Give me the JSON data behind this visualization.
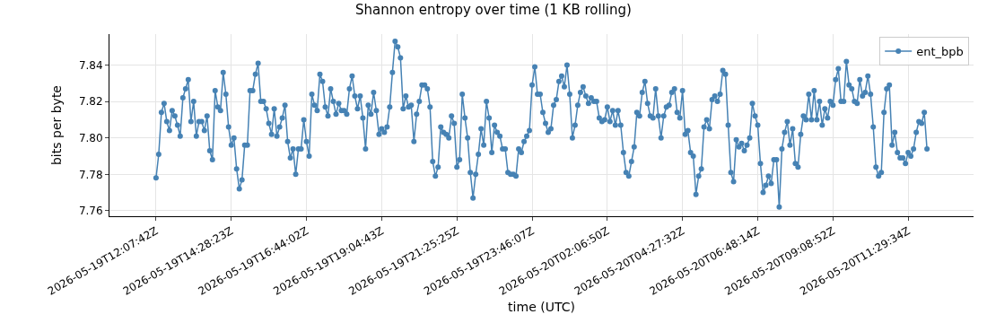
{
  "chart_data": {
    "type": "line",
    "title": "Shannon entropy over time (1 KB rolling)",
    "xlabel": "time (UTC)",
    "ylabel": "bits per byte",
    "categories": [
      "2026-05-19T12:07:42Z",
      null,
      null,
      null,
      null,
      null,
      null,
      null,
      null,
      null,
      null,
      null,
      null,
      null,
      null,
      null,
      null,
      null,
      null,
      null,
      null,
      null,
      null,
      null,
      null,
      null,
      null,
      null,
      "2026-05-19T14:28:23Z",
      null,
      null,
      null,
      null,
      null,
      null,
      null,
      null,
      null,
      null,
      null,
      null,
      null,
      null,
      null,
      null,
      null,
      null,
      null,
      null,
      null,
      null,
      null,
      null,
      null,
      null,
      null,
      "2026-05-19T16:44:02Z",
      null,
      null,
      null,
      null,
      null,
      null,
      null,
      null,
      null,
      null,
      null,
      null,
      null,
      null,
      null,
      null,
      null,
      null,
      null,
      null,
      null,
      null,
      null,
      null,
      null,
      null,
      null,
      "2026-05-19T19:04:43Z",
      null,
      null,
      null,
      null,
      null,
      null,
      null,
      null,
      null,
      null,
      null,
      null,
      null,
      null,
      null,
      null,
      null,
      null,
      null,
      null,
      null,
      null,
      null,
      null,
      null,
      null,
      null,
      "2026-05-19T21:25:25Z",
      null,
      null,
      null,
      null,
      null,
      null,
      null,
      null,
      null,
      null,
      null,
      null,
      null,
      null,
      null,
      null,
      null,
      null,
      null,
      null,
      null,
      null,
      null,
      null,
      null,
      null,
      null,
      "2026-05-19T23:46:07Z",
      null,
      null,
      null,
      null,
      null,
      null,
      null,
      null,
      null,
      null,
      null,
      null,
      null,
      null,
      null,
      null,
      null,
      null,
      null,
      null,
      null,
      null,
      null,
      null,
      null,
      null,
      null,
      "2026-05-20T02:06:50Z",
      null,
      null,
      null,
      null,
      null,
      null,
      null,
      null,
      null,
      null,
      null,
      null,
      null,
      null,
      null,
      null,
      null,
      null,
      null,
      null,
      null,
      null,
      null,
      null,
      null,
      null,
      null,
      "2026-05-20T04:27:32Z",
      null,
      null,
      null,
      null,
      null,
      null,
      null,
      null,
      null,
      null,
      null,
      null,
      null,
      null,
      null,
      null,
      null,
      null,
      null,
      null,
      null,
      null,
      null,
      null,
      null,
      null,
      null,
      "2026-05-20T06:48:14Z",
      null,
      null,
      null,
      null,
      null,
      null,
      null,
      null,
      null,
      null,
      null,
      null,
      null,
      null,
      null,
      null,
      null,
      null,
      null,
      null,
      null,
      null,
      null,
      null,
      null,
      null,
      null,
      "2026-05-20T09:08:52Z",
      null,
      null,
      null,
      null,
      null,
      null,
      null,
      null,
      null,
      null,
      null,
      null,
      null,
      null,
      null,
      null,
      null,
      null,
      null,
      null,
      null,
      null,
      null,
      null,
      null,
      null,
      null,
      "2026-05-20T11:29:34Z",
      null,
      null,
      null,
      null,
      null,
      null,
      null
    ],
    "series": [
      {
        "name": "ent_bpb",
        "color": "#4682b4",
        "values": [
          7.778,
          7.791,
          7.814,
          7.819,
          7.809,
          7.804,
          7.815,
          7.812,
          7.807,
          7.801,
          7.822,
          7.827,
          7.832,
          7.809,
          7.82,
          7.801,
          7.809,
          7.809,
          7.804,
          7.812,
          7.793,
          7.788,
          7.826,
          7.817,
          7.815,
          7.836,
          7.824,
          7.806,
          7.796,
          7.8,
          7.783,
          7.772,
          7.777,
          7.796,
          7.796,
          7.826,
          7.826,
          7.835,
          7.841,
          7.82,
          7.82,
          7.816,
          7.808,
          7.802,
          7.816,
          7.801,
          7.806,
          7.811,
          7.818,
          7.798,
          7.789,
          7.794,
          7.78,
          7.794,
          7.794,
          7.81,
          7.798,
          7.79,
          7.824,
          7.818,
          7.815,
          7.835,
          7.831,
          7.817,
          7.812,
          7.827,
          7.82,
          7.813,
          7.819,
          7.815,
          7.815,
          7.813,
          7.827,
          7.834,
          7.823,
          7.816,
          7.823,
          7.811,
          7.794,
          7.818,
          7.813,
          7.825,
          7.815,
          7.802,
          7.805,
          7.803,
          7.806,
          7.817,
          7.836,
          7.853,
          7.85,
          7.844,
          7.816,
          7.823,
          7.817,
          7.818,
          7.798,
          7.813,
          7.82,
          7.829,
          7.829,
          7.827,
          7.817,
          7.787,
          7.779,
          7.784,
          7.806,
          7.803,
          7.802,
          7.8,
          7.812,
          7.808,
          7.784,
          7.788,
          7.824,
          7.811,
          7.8,
          7.781,
          7.767,
          7.78,
          7.791,
          7.805,
          7.796,
          7.82,
          7.811,
          7.792,
          7.807,
          7.803,
          7.801,
          7.794,
          7.794,
          7.781,
          7.78,
          7.78,
          7.779,
          7.794,
          7.792,
          7.798,
          7.801,
          7.804,
          7.829,
          7.839,
          7.824,
          7.824,
          7.814,
          7.808,
          7.803,
          7.805,
          7.818,
          7.821,
          7.831,
          7.834,
          7.828,
          7.84,
          7.824,
          7.8,
          7.807,
          7.818,
          7.825,
          7.828,
          7.823,
          7.819,
          7.822,
          7.82,
          7.82,
          7.811,
          7.809,
          7.81,
          7.817,
          7.809,
          7.815,
          7.807,
          7.815,
          7.807,
          7.792,
          7.781,
          7.779,
          7.787,
          7.795,
          7.814,
          7.812,
          7.825,
          7.831,
          7.819,
          7.812,
          7.811,
          7.827,
          7.812,
          7.8,
          7.812,
          7.817,
          7.818,
          7.825,
          7.827,
          7.814,
          7.811,
          7.826,
          7.802,
          7.804,
          7.792,
          7.79,
          7.769,
          7.779,
          7.783,
          7.806,
          7.81,
          7.805,
          7.821,
          7.823,
          7.82,
          7.824,
          7.837,
          7.835,
          7.807,
          7.781,
          7.776,
          7.799,
          7.795,
          7.797,
          7.793,
          7.796,
          7.8,
          7.819,
          7.812,
          7.807,
          7.786,
          7.77,
          7.774,
          7.779,
          7.775,
          7.788,
          7.788,
          7.762,
          7.794,
          7.803,
          7.809,
          7.796,
          7.805,
          7.786,
          7.784,
          7.802,
          7.812,
          7.81,
          7.824,
          7.81,
          7.826,
          7.81,
          7.82,
          7.807,
          7.816,
          7.811,
          7.82,
          7.818,
          7.832,
          7.838,
          7.82,
          7.82,
          7.842,
          7.829,
          7.827,
          7.82,
          7.819,
          7.832,
          7.823,
          7.825,
          7.834,
          7.824,
          7.806,
          7.784,
          7.779,
          7.781,
          7.814,
          7.827,
          7.829,
          7.796,
          7.803,
          7.792,
          7.789,
          7.789,
          7.786,
          7.792,
          7.79,
          7.794,
          7.803,
          7.809,
          7.808,
          7.814,
          7.794
        ]
      }
    ],
    "ylim": [
      7.757,
      7.857
    ],
    "yticks": [
      7.76,
      7.78,
      {
        "value": 7.8,
        "label": "7.80"
      },
      7.82,
      7.84
    ],
    "grid": true,
    "legend": "top right",
    "marker": "circle"
  }
}
